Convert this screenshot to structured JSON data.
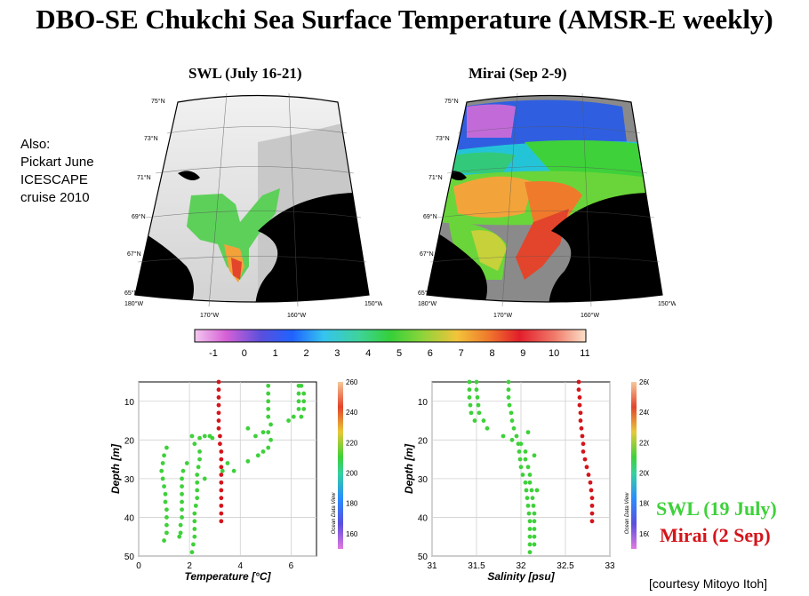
{
  "title": "DBO-SE Chukchi Sea Surface Temperature (AMSR-E weekly)",
  "maps": [
    {
      "title": "SWL (July 16-21)",
      "lat_labels": [
        "75°N",
        "73°N",
        "71°N",
        "69°N",
        "67°N",
        "65°N"
      ],
      "lon_labels": [
        "180°W",
        "170°W",
        "160°W",
        "150°W"
      ]
    },
    {
      "title": "Mirai (Sep 2-9)",
      "lat_labels": [
        "75°N",
        "73°N",
        "71°N",
        "69°N",
        "67°N",
        "65°N"
      ],
      "lon_labels": [
        "180°W",
        "170°W",
        "160°W",
        "150°W"
      ]
    }
  ],
  "also_note": [
    "Also:",
    "Pickart June",
    "ICESCAPE",
    "cruise 2010"
  ],
  "colorbar": {
    "ticks": [
      "-1",
      "0",
      "1",
      "2",
      "3",
      "4",
      "5",
      "6",
      "7",
      "8",
      "9",
      "10",
      "11"
    ]
  },
  "legend": {
    "swl": "SWL (19 July)",
    "mirai": "Mirai (2 Sep)",
    "swl_color": "#3ed13a",
    "mirai_color": "#d4151b"
  },
  "courtesy": "[courtesy Mitoyo Itoh]",
  "chart_data": [
    {
      "type": "scatter",
      "xlabel": "Temperature [°C]",
      "ylabel": "Depth [m]",
      "xlim": [
        0,
        7
      ],
      "ylim": [
        50,
        5
      ],
      "xticks": [
        0,
        2,
        4,
        6
      ],
      "yticks": [
        10,
        20,
        30,
        40,
        50
      ],
      "zbar_ticks": [
        160,
        180,
        200,
        220,
        240,
        260
      ],
      "zbar_label": "Ocean Data View",
      "series": [
        {
          "color": "#3ed13a",
          "points": [
            [
              1.1,
              22
            ],
            [
              1.0,
              24
            ],
            [
              0.95,
              26
            ],
            [
              0.9,
              28
            ],
            [
              0.95,
              30
            ],
            [
              1.0,
              32
            ],
            [
              1.05,
              34
            ],
            [
              1.05,
              36
            ],
            [
              1.1,
              38
            ],
            [
              1.1,
              40
            ],
            [
              1.1,
              42
            ],
            [
              1.1,
              44
            ],
            [
              1.0,
              46
            ],
            [
              1.9,
              26
            ],
            [
              1.75,
              28
            ],
            [
              1.7,
              30
            ],
            [
              1.7,
              32
            ],
            [
              1.7,
              34
            ],
            [
              1.7,
              36
            ],
            [
              1.7,
              38
            ],
            [
              1.7,
              40
            ],
            [
              1.65,
              42
            ],
            [
              1.65,
              44
            ],
            [
              1.6,
              45
            ],
            [
              2.1,
              19
            ],
            [
              2.2,
              21
            ],
            [
              2.4,
              23
            ],
            [
              2.4,
              25
            ],
            [
              2.35,
              27
            ],
            [
              2.3,
              29
            ],
            [
              2.3,
              31
            ],
            [
              2.3,
              33
            ],
            [
              2.3,
              35
            ],
            [
              2.25,
              37
            ],
            [
              2.2,
              39
            ],
            [
              2.2,
              41
            ],
            [
              2.2,
              43
            ],
            [
              2.2,
              45
            ],
            [
              2.15,
              47
            ],
            [
              2.1,
              49
            ],
            [
              2.4,
              19.5
            ],
            [
              2.6,
              19
            ],
            [
              2.8,
              19
            ],
            [
              2.9,
              19.5
            ],
            [
              2.6,
              30
            ],
            [
              3.3,
              28
            ],
            [
              3.5,
              26
            ],
            [
              3.75,
              28
            ],
            [
              4.3,
              25.5
            ],
            [
              4.7,
              24
            ],
            [
              4.9,
              23
            ],
            [
              5.1,
              22
            ],
            [
              5.2,
              20
            ],
            [
              5.1,
              18
            ],
            [
              5.2,
              16
            ],
            [
              5.1,
              14
            ],
            [
              5.1,
              12
            ],
            [
              5.1,
              10
            ],
            [
              5.1,
              8
            ],
            [
              5.1,
              6
            ],
            [
              4.3,
              17
            ],
            [
              4.6,
              19
            ],
            [
              4.9,
              18
            ],
            [
              5.9,
              15
            ],
            [
              6.1,
              14
            ],
            [
              6.3,
              12
            ],
            [
              6.3,
              10
            ],
            [
              6.3,
              8
            ],
            [
              6.3,
              6
            ],
            [
              6.4,
              14
            ],
            [
              6.5,
              12
            ],
            [
              6.5,
              10
            ],
            [
              6.5,
              8
            ],
            [
              6.4,
              6
            ]
          ]
        },
        {
          "color": "#d4151b",
          "points": [
            [
              3.15,
              5
            ],
            [
              3.15,
              7
            ],
            [
              3.15,
              9
            ],
            [
              3.15,
              11
            ],
            [
              3.15,
              13
            ],
            [
              3.15,
              15
            ],
            [
              3.15,
              17
            ],
            [
              3.2,
              19
            ],
            [
              3.2,
              21
            ],
            [
              3.25,
              23
            ],
            [
              3.25,
              25
            ],
            [
              3.25,
              27
            ],
            [
              3.25,
              29
            ],
            [
              3.25,
              31
            ],
            [
              3.25,
              33
            ],
            [
              3.25,
              35
            ],
            [
              3.25,
              37
            ],
            [
              3.25,
              39
            ],
            [
              3.25,
              41
            ]
          ]
        }
      ]
    },
    {
      "type": "scatter",
      "xlabel": "Salinity [psu]",
      "ylabel": "Depth [m]",
      "xlim": [
        31,
        33
      ],
      "ylim": [
        50,
        5
      ],
      "xticks": [
        31,
        31.5,
        32,
        32.5,
        33
      ],
      "yticks": [
        10,
        20,
        30,
        40,
        50
      ],
      "zbar_ticks": [
        160,
        180,
        200,
        220,
        240,
        260
      ],
      "zbar_label": "Ocean Data View",
      "series": [
        {
          "color": "#3ed13a",
          "points": [
            [
              31.42,
              5
            ],
            [
              31.42,
              7
            ],
            [
              31.42,
              9
            ],
            [
              31.43,
              11
            ],
            [
              31.44,
              13
            ],
            [
              31.48,
              15
            ],
            [
              31.5,
              5
            ],
            [
              31.5,
              7
            ],
            [
              31.51,
              9
            ],
            [
              31.52,
              11
            ],
            [
              31.53,
              13
            ],
            [
              31.58,
              15
            ],
            [
              31.62,
              17
            ],
            [
              31.86,
              5
            ],
            [
              31.86,
              7
            ],
            [
              31.86,
              9
            ],
            [
              31.87,
              11
            ],
            [
              31.89,
              13
            ],
            [
              31.9,
              15
            ],
            [
              31.92,
              17
            ],
            [
              31.95,
              19
            ],
            [
              31.97,
              21
            ],
            [
              31.98,
              23
            ],
            [
              31.99,
              25
            ],
            [
              32.0,
              27
            ],
            [
              32.02,
              29
            ],
            [
              32.05,
              31
            ],
            [
              32.06,
              33
            ],
            [
              32.07,
              35
            ],
            [
              32.08,
              37
            ],
            [
              32.09,
              39
            ],
            [
              32.1,
              41
            ],
            [
              32.1,
              43
            ],
            [
              32.1,
              45
            ],
            [
              32.1,
              47
            ],
            [
              32.1,
              49
            ],
            [
              31.8,
              19
            ],
            [
              31.9,
              20
            ],
            [
              32.0,
              21
            ],
            [
              32.05,
              23
            ],
            [
              32.05,
              25
            ],
            [
              32.08,
              27
            ],
            [
              32.1,
              29
            ],
            [
              32.1,
              31
            ],
            [
              32.12,
              33
            ],
            [
              32.13,
              35
            ],
            [
              32.14,
              37
            ],
            [
              32.15,
              39
            ],
            [
              32.15,
              41
            ],
            [
              32.15,
              43
            ],
            [
              32.15,
              45
            ],
            [
              32.15,
              47
            ],
            [
              32.08,
              18
            ],
            [
              32.15,
              24
            ],
            [
              32.18,
              33
            ]
          ]
        },
        {
          "color": "#d4151b",
          "points": [
            [
              32.65,
              5
            ],
            [
              32.65,
              7
            ],
            [
              32.66,
              9
            ],
            [
              32.66,
              11
            ],
            [
              32.67,
              13
            ],
            [
              32.67,
              15
            ],
            [
              32.68,
              17
            ],
            [
              32.69,
              19
            ],
            [
              32.7,
              21
            ],
            [
              32.7,
              23
            ],
            [
              32.72,
              25
            ],
            [
              32.74,
              27
            ],
            [
              32.76,
              29
            ],
            [
              32.78,
              31
            ],
            [
              32.79,
              33
            ],
            [
              32.8,
              35
            ],
            [
              32.8,
              37
            ],
            [
              32.8,
              39
            ],
            [
              32.8,
              41
            ]
          ]
        }
      ]
    }
  ]
}
